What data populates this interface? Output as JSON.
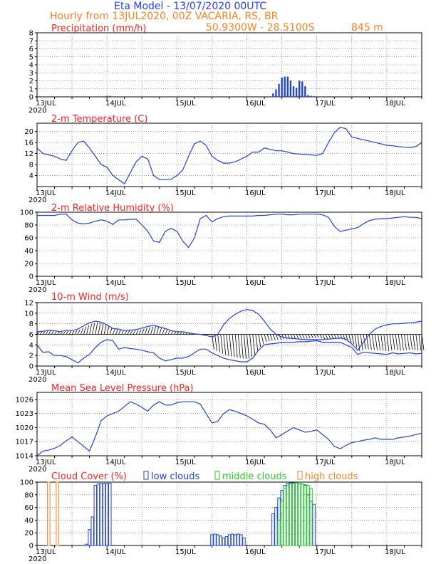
{
  "header": {
    "title": "Eta Model - 13/07/2020 00UTC",
    "subtitle": "Hourly from 13JUL2020, 00Z  VACARIA, RS, BR",
    "coords": "50.9300W - 28.5100S",
    "elevation": "845  m"
  },
  "colors": {
    "title_blue": "#2040ff",
    "header_orange": "#ff8020",
    "panel_title_red": "#ff2020",
    "series_blue": "#2040e0",
    "bar_blue": "#2040e0",
    "middle_green": "#20d020",
    "high_orange": "#ff8020",
    "grid": "#606060"
  },
  "x_labels": [
    "13JUL",
    "14JUL",
    "15JUL",
    "16JUL",
    "17JUL",
    "18JUL"
  ],
  "year_label": "2020",
  "chart_data": [
    {
      "id": "precip",
      "type": "bar",
      "title": "Precipitation (mm/h)",
      "xlabel": "",
      "ylabel": "mm/h",
      "ylim": [
        0,
        8
      ],
      "yticks": [
        "0",
        "1",
        "2",
        "3",
        "4",
        "5",
        "6",
        "7",
        "8"
      ],
      "ytick_values": [
        0,
        1,
        2,
        3,
        4,
        5,
        6,
        7,
        8
      ],
      "x_hours": [
        24,
        25,
        81,
        82,
        83,
        84,
        85,
        86,
        87,
        88,
        89,
        90,
        91,
        92,
        93,
        94,
        95
      ],
      "values": [
        0.1,
        0.1,
        0.4,
        0.9,
        1.6,
        2.4,
        2.5,
        2.5,
        2.0,
        1.3,
        1.1,
        2.0,
        1.9,
        1.3,
        0.2,
        0.1,
        0.05
      ]
    },
    {
      "id": "temp",
      "type": "line",
      "title": "2-m Temperature (C)",
      "ylabel": "C",
      "ylim": [
        0,
        23
      ],
      "yticks": [
        "4",
        "8",
        "12",
        "16",
        "20"
      ],
      "ytick_values": [
        4,
        8,
        12,
        16,
        20
      ],
      "x": [
        0,
        2,
        4,
        6,
        8,
        10,
        12,
        14,
        16,
        18,
        20,
        22,
        24,
        26,
        28,
        30,
        32,
        34,
        36,
        38,
        40,
        42,
        44,
        46,
        48,
        50,
        52,
        54,
        56,
        58,
        60,
        62,
        64,
        66,
        68,
        70,
        72,
        74,
        76,
        78,
        80,
        82,
        84,
        86,
        88,
        90,
        92,
        94,
        96,
        98,
        100,
        102,
        104,
        106,
        108,
        110,
        112,
        114,
        116,
        118,
        120,
        122,
        124,
        126,
        128,
        130,
        132
      ],
      "values": [
        14,
        12,
        11.5,
        11,
        10,
        9.5,
        13,
        16,
        16.5,
        14,
        11,
        8,
        7,
        4,
        2.5,
        1,
        5,
        9,
        11,
        10,
        4,
        2.5,
        2.5,
        2.7,
        4,
        6,
        11,
        15.5,
        16.5,
        15,
        11,
        9.5,
        8.5,
        8.5,
        9,
        10,
        11,
        12.5,
        12.5,
        14,
        13.5,
        13,
        13,
        12.5,
        12,
        11.8,
        11.6,
        11.5,
        11.3,
        12,
        16,
        19.5,
        21.5,
        21,
        18,
        17.5,
        17,
        16.5,
        16,
        15.5,
        15,
        14.8,
        14.5,
        14.3,
        14.2,
        14.5,
        16
      ]
    },
    {
      "id": "rh",
      "type": "line",
      "title": "2-m Relative Humidity (%)",
      "ylabel": "%",
      "ylim": [
        0,
        100
      ],
      "yticks": [
        "0",
        "20",
        "40",
        "60",
        "80",
        "100"
      ],
      "ytick_values": [
        0,
        20,
        40,
        60,
        80,
        100
      ],
      "x": [
        0,
        2,
        4,
        6,
        8,
        10,
        12,
        14,
        16,
        18,
        20,
        22,
        24,
        26,
        28,
        30,
        32,
        34,
        36,
        38,
        40,
        42,
        44,
        46,
        48,
        50,
        52,
        54,
        56,
        58,
        60,
        62,
        64,
        66,
        68,
        70,
        72,
        74,
        76,
        78,
        80,
        82,
        84,
        86,
        88,
        90,
        92,
        94,
        96,
        98,
        100,
        102,
        104,
        106,
        108,
        110,
        112,
        114,
        116,
        118,
        120,
        122,
        124,
        126,
        128,
        130,
        132
      ],
      "values": [
        95,
        95,
        95,
        95,
        97,
        97,
        88,
        83,
        82,
        83,
        86,
        88,
        86,
        81,
        88,
        88,
        89,
        89,
        80,
        70,
        55,
        53,
        70,
        75,
        70,
        55,
        45,
        60,
        90,
        95,
        85,
        90,
        93,
        94,
        94,
        94,
        94,
        94,
        95,
        95,
        96,
        97,
        97,
        96,
        96,
        97,
        97,
        97,
        97,
        96,
        92,
        78,
        70,
        72,
        74,
        76,
        82,
        87,
        89,
        90,
        90,
        91,
        92,
        93,
        92,
        92,
        90
      ]
    },
    {
      "id": "wind",
      "type": "line",
      "title": "10-m Wind (m/s)",
      "ylabel": "m/s",
      "ylim": [
        0,
        12
      ],
      "yticks": [
        "0",
        "2",
        "4",
        "6",
        "8",
        "10",
        "12"
      ],
      "ytick_values": [
        0,
        2,
        4,
        6,
        8,
        10,
        12
      ],
      "baseline": 6,
      "series": [
        {
          "name": "wind-speed-upper",
          "x": [
            0,
            2,
            4,
            6,
            8,
            10,
            12,
            14,
            16,
            18,
            20,
            22,
            24,
            26,
            28,
            30,
            32,
            34,
            36,
            38,
            40,
            42,
            44,
            46,
            48,
            50,
            52,
            54,
            56,
            58,
            60,
            62,
            64,
            66,
            68,
            70,
            72,
            74,
            76,
            78,
            80,
            82,
            84,
            86,
            88,
            90,
            92,
            94,
            96,
            98,
            100,
            102,
            104,
            106,
            108,
            110,
            112,
            114,
            116,
            118,
            120,
            122,
            124,
            126,
            128,
            130,
            132
          ],
          "values": [
            6.5,
            6.6,
            6.8,
            6.7,
            6.5,
            6.8,
            6.7,
            7,
            7.6,
            8.2,
            8.5,
            8.3,
            7.8,
            7.1,
            7,
            6.7,
            6.8,
            6.9,
            7.2,
            7.5,
            7.7,
            7.4,
            7.1,
            6.7,
            6.5,
            6.5,
            6.3,
            6.1,
            6,
            5.8,
            5.5,
            6,
            7.8,
            9,
            9.8,
            10.4,
            10.7,
            10.5,
            9.8,
            8.5,
            7,
            6,
            5.5,
            5.3,
            5.2,
            5.1,
            5,
            5,
            5,
            5,
            5.1,
            5.2,
            5.3,
            5.1,
            4.2,
            3,
            4.5,
            6,
            7,
            7.5,
            7.8,
            8,
            8,
            8.1,
            8.2,
            8.3,
            8.5
          ]
        },
        {
          "name": "wind-speed-lower",
          "x": [
            0,
            2,
            4,
            6,
            8,
            10,
            12,
            14,
            16,
            18,
            20,
            22,
            24,
            26,
            28,
            30,
            32,
            34,
            36,
            38,
            40,
            42,
            44,
            46,
            48,
            50,
            52,
            54,
            56,
            58,
            60,
            62,
            64,
            66,
            68,
            70,
            72,
            74,
            76,
            78,
            80,
            82,
            84,
            86,
            88,
            90,
            92,
            94,
            96,
            98,
            100,
            102,
            104,
            106,
            108,
            110,
            112,
            114,
            116,
            118,
            120,
            122,
            124,
            126,
            128,
            130,
            132
          ],
          "values": [
            4,
            2.6,
            2.7,
            2,
            2,
            1.8,
            1.2,
            0.6,
            1.5,
            2.2,
            3.5,
            4.5,
            5,
            4.8,
            3.2,
            3.5,
            3.3,
            3.2,
            3,
            2.7,
            2.5,
            1.5,
            1,
            1.2,
            1.5,
            1.5,
            1.8,
            2.5,
            3.2,
            3.2,
            2.5,
            2,
            1.5,
            1.2,
            1,
            0.8,
            0.8,
            1.5,
            3,
            4,
            4.2,
            4.3,
            4.5,
            4.5,
            4.5,
            4.6,
            4.6,
            4.7,
            4.8,
            4.5,
            4.5,
            4.5,
            4.5,
            4,
            3.5,
            2.2,
            2.6,
            2.5,
            2.4,
            2.3,
            2.2,
            2.5,
            2.3,
            2.4,
            2.5,
            2.3,
            2.4
          ]
        }
      ]
    },
    {
      "id": "mslp",
      "type": "line",
      "title": "Mean Sea Level Pressure (hPa)",
      "ylabel": "hPa",
      "ylim": [
        1014,
        1027.5
      ],
      "yticks": [
        "1014",
        "1017",
        "1020",
        "1023",
        "1026"
      ],
      "ytick_values": [
        1014,
        1017,
        1020,
        1023,
        1026
      ],
      "x": [
        0,
        2,
        4,
        6,
        8,
        10,
        12,
        14,
        16,
        18,
        20,
        22,
        24,
        26,
        28,
        30,
        32,
        34,
        36,
        38,
        40,
        42,
        44,
        46,
        48,
        50,
        52,
        54,
        56,
        58,
        60,
        62,
        64,
        66,
        68,
        70,
        72,
        74,
        76,
        78,
        80,
        82,
        84,
        86,
        88,
        90,
        92,
        94,
        96,
        98,
        100,
        102,
        104,
        106,
        108,
        110,
        112,
        114,
        116,
        118,
        120,
        122,
        124,
        126,
        128,
        130,
        132
      ],
      "values": [
        1014,
        1015,
        1015.2,
        1015.6,
        1016.2,
        1017.2,
        1018,
        1017,
        1016,
        1015,
        1018,
        1021.5,
        1022.5,
        1023,
        1023.5,
        1024.5,
        1025.5,
        1025,
        1024.3,
        1023.5,
        1024.8,
        1025.5,
        1024.8,
        1024.8,
        1025.3,
        1025.5,
        1025.5,
        1025.5,
        1025,
        1023,
        1021,
        1021.3,
        1023,
        1023.8,
        1023.5,
        1023,
        1022.5,
        1021.8,
        1021,
        1020.7,
        1019.5,
        1017.8,
        1018.5,
        1019.3,
        1020,
        1019.5,
        1019,
        1019.2,
        1019.5,
        1018.5,
        1017.5,
        1016,
        1015.5,
        1016.2,
        1016.8,
        1017,
        1017.3,
        1017.5,
        1017.8,
        1017.5,
        1017.5,
        1017.5,
        1017.8,
        1018,
        1018.2,
        1018.5,
        1018.8
      ]
    },
    {
      "id": "cloud",
      "type": "bar",
      "title": "Cloud Cover (%)",
      "ylabel": "%",
      "ylim": [
        0,
        100
      ],
      "yticks": [
        "0",
        "20",
        "40",
        "60",
        "80",
        "100"
      ],
      "ytick_values": [
        0,
        20,
        40,
        60,
        80,
        100
      ],
      "legend": [
        "low clouds",
        "middle clouds",
        "high clouds"
      ],
      "series": [
        {
          "name": "low clouds",
          "x_hours": [
            17,
            18,
            19,
            20,
            21,
            22,
            23,
            24,
            25,
            60,
            61,
            62,
            63,
            64,
            65,
            66,
            67,
            68,
            69,
            70,
            71,
            81,
            82,
            83,
            84,
            85,
            86,
            87,
            88,
            89,
            90,
            91,
            92,
            93,
            94,
            95
          ],
          "values": [
            2,
            25,
            45,
            95,
            97,
            98,
            98,
            98,
            98,
            17,
            18,
            17,
            15,
            12,
            14,
            17,
            18,
            17,
            18,
            17,
            12,
            50,
            60,
            75,
            87,
            95,
            98,
            99,
            99,
            99,
            98,
            97,
            95,
            80,
            70,
            65
          ]
        },
        {
          "name": "middle clouds",
          "x_hours": [
            83,
            84,
            85,
            86,
            87,
            88,
            89,
            90,
            91,
            92,
            93,
            94
          ],
          "values": [
            40,
            70,
            90,
            95,
            97,
            98,
            99,
            98,
            97,
            96,
            95,
            90
          ]
        },
        {
          "name": "high clouds",
          "x_hours": [
            4,
            7
          ],
          "values": [
            100,
            100
          ]
        }
      ]
    }
  ]
}
